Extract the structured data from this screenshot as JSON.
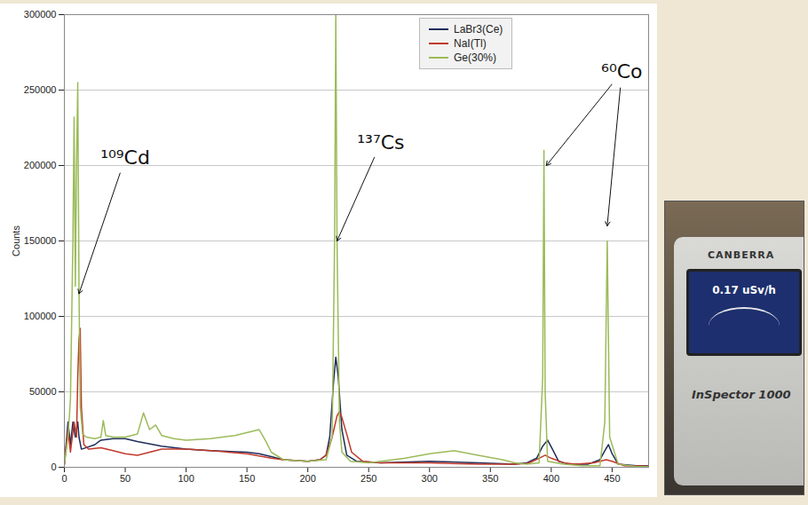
{
  "chart_data": {
    "type": "line",
    "y_label": "Counts",
    "xlim": [
      0,
      480
    ],
    "xticks": [
      0,
      50,
      100,
      150,
      200,
      250,
      300,
      350,
      400,
      450
    ],
    "ylim": [
      0,
      300000
    ],
    "yticks": [
      0,
      50000,
      100000,
      150000,
      200000,
      250000,
      300000
    ],
    "grid": "y",
    "legend": "top-right",
    "series": [
      {
        "name": "LaBr3(Ce)",
        "color": "#1f2d5a",
        "x": [
          0,
          3,
          5,
          7,
          9,
          10,
          11,
          12,
          14,
          18,
          25,
          30,
          40,
          50,
          60,
          80,
          100,
          120,
          150,
          160,
          170,
          180,
          200,
          210,
          215,
          218,
          221,
          223,
          225,
          228,
          232,
          240,
          260,
          300,
          340,
          370,
          380,
          388,
          393,
          397,
          401,
          406,
          415,
          430,
          440,
          444,
          447,
          450,
          455,
          470,
          480
        ],
        "values": [
          2000,
          30000,
          15000,
          30000,
          20000,
          25000,
          30000,
          20000,
          12000,
          13000,
          15000,
          18000,
          19000,
          19000,
          17000,
          14000,
          12000,
          11000,
          10000,
          9000,
          7000,
          5000,
          4000,
          5000,
          8000,
          20000,
          55000,
          73000,
          60000,
          25000,
          8000,
          4000,
          3000,
          4000,
          3000,
          2000,
          3000,
          6000,
          14000,
          18000,
          12000,
          4000,
          2000,
          2000,
          5000,
          11000,
          15000,
          9000,
          2000,
          1000,
          1000
        ]
      },
      {
        "name": "NaI(Tl)",
        "color": "#c0392b",
        "x": [
          0,
          3,
          5,
          8,
          10,
          11,
          12,
          13,
          14,
          16,
          20,
          30,
          40,
          50,
          60,
          80,
          100,
          120,
          150,
          170,
          180,
          200,
          210,
          215,
          220,
          224,
          226,
          228,
          232,
          236,
          245,
          260,
          300,
          340,
          370,
          380,
          385,
          390,
          395,
          400,
          410,
          420,
          435,
          445,
          450,
          460,
          480
        ],
        "values": [
          2000,
          25000,
          10000,
          30000,
          20000,
          60000,
          85000,
          92000,
          40000,
          15000,
          12000,
          13000,
          11000,
          9000,
          8000,
          12000,
          12000,
          11000,
          9000,
          6000,
          5000,
          4000,
          5000,
          8000,
          20000,
          34000,
          37000,
          33000,
          22000,
          10000,
          4000,
          3000,
          3000,
          2000,
          2000,
          2500,
          4000,
          6000,
          8000,
          6000,
          3000,
          2000,
          3000,
          5000,
          4000,
          1000,
          800
        ]
      },
      {
        "name": "Ge(30%)",
        "color": "#9bbb59",
        "x": [
          0,
          3,
          5,
          7,
          8,
          9,
          10,
          11,
          12,
          13,
          15,
          18,
          25,
          30,
          32,
          34,
          40,
          50,
          60,
          65,
          70,
          75,
          80,
          90,
          100,
          120,
          140,
          155,
          160,
          165,
          170,
          180,
          200,
          215,
          220,
          222,
          223,
          224,
          226,
          228,
          235,
          250,
          280,
          300,
          320,
          340,
          360,
          370,
          380,
          390,
          393,
          394,
          395,
          397,
          410,
          425,
          440,
          444,
          446,
          448,
          455,
          470,
          480
        ],
        "values": [
          2000,
          20000,
          45000,
          150000,
          232000,
          120000,
          200000,
          255000,
          120000,
          40000,
          22000,
          20000,
          19000,
          20000,
          31000,
          21000,
          20000,
          20000,
          22000,
          36000,
          25000,
          28000,
          21000,
          19000,
          18000,
          19000,
          21000,
          24000,
          25000,
          18000,
          10000,
          5000,
          4000,
          5000,
          20000,
          150000,
          300000,
          150000,
          30000,
          10000,
          4000,
          3000,
          6000,
          9000,
          11000,
          8000,
          5000,
          3000,
          2000,
          3000,
          60000,
          210000,
          50000,
          4000,
          2000,
          1000,
          1000,
          30000,
          150000,
          20000,
          2000,
          500,
          500
        ]
      }
    ],
    "annotations": [
      {
        "text": "¹⁰⁹Cd",
        "x": 50,
        "y": 205000,
        "targets": [
          {
            "x": 12,
            "y": 115000
          }
        ]
      },
      {
        "text": "¹³⁷Cs",
        "x": 260,
        "y": 215000,
        "targets": [
          {
            "x": 224,
            "y": 150000
          }
        ]
      },
      {
        "text": "⁶⁰Co",
        "x": 458,
        "y": 262000,
        "targets": [
          {
            "x": 396,
            "y": 200000
          },
          {
            "x": 446,
            "y": 160000
          }
        ]
      }
    ]
  },
  "inset": {
    "brand": "CANBERRA",
    "reading": "0.17 uSv/h",
    "model": "InSpector 1000"
  }
}
